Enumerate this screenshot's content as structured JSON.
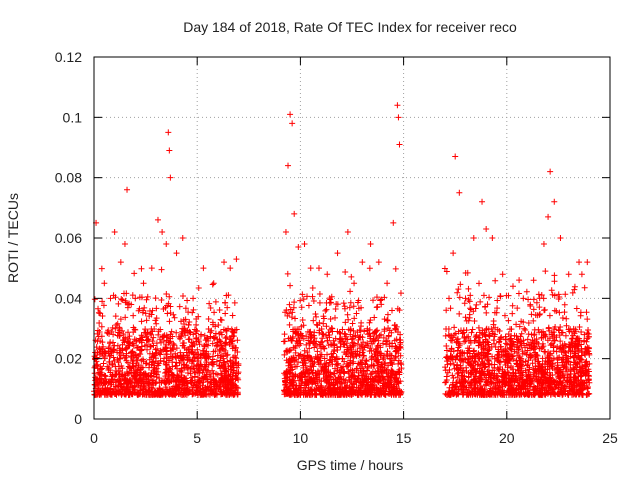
{
  "chart_data": {
    "type": "scatter",
    "title": "Day 184 of 2018, Rate Of TEC Index for receiver reco",
    "xlabel": "GPS time / hours",
    "ylabel": "ROTI / TECUs",
    "xlim": [
      0,
      25
    ],
    "ylim": [
      0,
      0.12
    ],
    "x_ticks": [
      0,
      5,
      10,
      15,
      20,
      25
    ],
    "x_tick_labels": [
      "0",
      "5",
      "10",
      "15",
      "20",
      "25"
    ],
    "y_ticks": [
      0,
      0.02,
      0.04,
      0.06,
      0.08,
      0.1,
      0.12
    ],
    "y_tick_labels": [
      "0",
      "0.02",
      "0.04",
      "0.06",
      "0.08",
      "0.1",
      "0.12"
    ],
    "grid": true,
    "marker": "+",
    "marker_color": "#ff0000",
    "data_gaps_hours": [
      [
        7.0,
        9.2
      ],
      [
        14.9,
        17.0
      ]
    ],
    "series": [
      {
        "name": "ROTI",
        "x": [
          0.1,
          0.3,
          0.5,
          0.8,
          1.0,
          1.3,
          1.5,
          1.6,
          2.0,
          2.4,
          2.8,
          3.1,
          3.3,
          3.5,
          3.6,
          3.65,
          3.7,
          4.0,
          4.3,
          4.8,
          5.3,
          5.8,
          6.3,
          6.6,
          6.9,
          9.3,
          9.4,
          9.5,
          9.6,
          9.7,
          9.9,
          10.2,
          10.5,
          10.9,
          11.3,
          11.8,
          12.3,
          12.6,
          13.0,
          13.4,
          13.8,
          14.2,
          14.5,
          14.7,
          14.75,
          14.8,
          17.2,
          17.4,
          17.5,
          17.7,
          18.0,
          18.4,
          18.8,
          19.0,
          19.3,
          19.8,
          20.3,
          20.8,
          21.3,
          21.8,
          22.0,
          22.1,
          22.3,
          22.6,
          23.0,
          23.5,
          23.9
        ],
        "y": [
          0.065,
          0.035,
          0.045,
          0.04,
          0.062,
          0.052,
          0.058,
          0.076,
          0.04,
          0.045,
          0.05,
          0.066,
          0.062,
          0.058,
          0.095,
          0.089,
          0.08,
          0.055,
          0.06,
          0.04,
          0.05,
          0.045,
          0.052,
          0.05,
          0.053,
          0.062,
          0.084,
          0.101,
          0.098,
          0.068,
          0.057,
          0.058,
          0.05,
          0.05,
          0.048,
          0.055,
          0.062,
          0.045,
          0.052,
          0.058,
          0.052,
          0.045,
          0.065,
          0.104,
          0.1,
          0.091,
          0.04,
          0.055,
          0.087,
          0.075,
          0.04,
          0.06,
          0.072,
          0.063,
          0.06,
          0.048,
          0.044,
          0.04,
          0.046,
          0.058,
          0.067,
          0.082,
          0.072,
          0.06,
          0.048,
          0.052,
          0.052
        ]
      }
    ]
  }
}
